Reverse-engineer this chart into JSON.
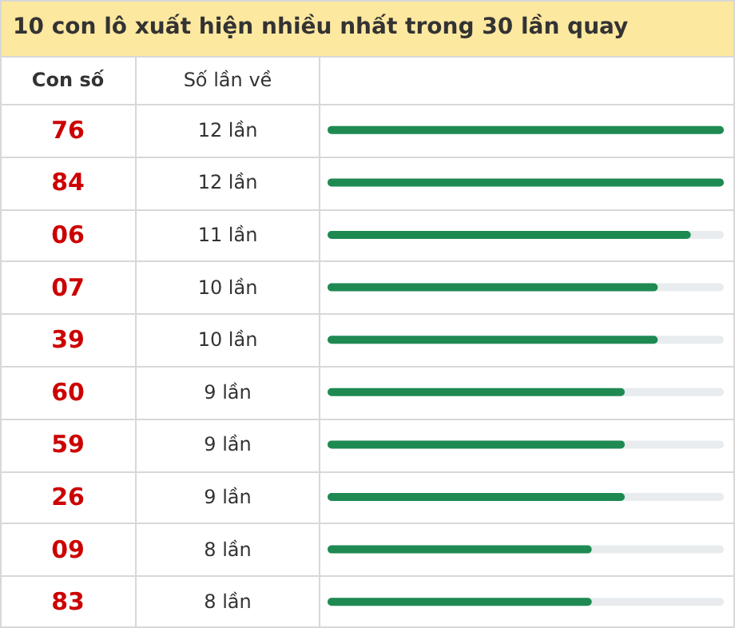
{
  "chart_data": {
    "type": "bar",
    "orientation": "horizontal",
    "title": "10 con lô xuất hiện nhiều nhất trong 30 lần quay",
    "annotations": [
      "Con số",
      "Số lần về"
    ],
    "categories": [
      "76",
      "84",
      "06",
      "07",
      "39",
      "60",
      "59",
      "26",
      "09",
      "83"
    ],
    "values": [
      12,
      12,
      11,
      10,
      10,
      9,
      9,
      9,
      8,
      8
    ],
    "value_labels": [
      "12 lần",
      "12 lần",
      "11 lần",
      "10 lần",
      "10 lần",
      "9 lần",
      "9 lần",
      "9 lần",
      "8 lần",
      "8 lần"
    ],
    "color": "#1e8a52",
    "xlim": [
      0,
      12
    ],
    "tick_labels": "y"
  }
}
